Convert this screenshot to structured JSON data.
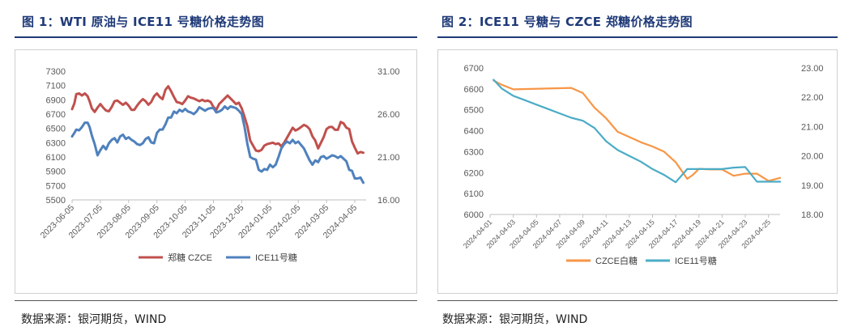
{
  "figure1": {
    "title": "图 1：WTI 原油与 ICE11 号糖价格走势图",
    "source": "数据来源：银河期货，WIND"
  },
  "figure2": {
    "title": "图 2：ICE11 号糖与 CZCE 郑糖价格走势图",
    "source": "数据来源：银河期货，WIND"
  },
  "colors": {
    "title": "#1f3a78",
    "red": "#c0504d",
    "blue": "#4f81bd",
    "orange": "#f79646",
    "cyan": "#4bacc6"
  },
  "chart_data": [
    {
      "type": "line",
      "title": "",
      "x_tick_labels": [
        "2023-06-05",
        "2023-07-05",
        "2023-08-05",
        "2023-09-05",
        "2023-10-05",
        "2023-11-05",
        "2023-12-05",
        "2024-01-05",
        "2024-02-05",
        "2024-03-05",
        "2024-04-05"
      ],
      "y_left": {
        "ticks": [
          5500,
          5700,
          5900,
          6100,
          6300,
          6500,
          6700,
          6900,
          7100,
          7300
        ],
        "tick_labels": [
          "5500",
          "5700",
          "5900",
          "6100",
          "6300",
          "6500",
          "6700",
          "6900",
          "7100",
          "7300"
        ],
        "ylim": [
          5500,
          7300
        ]
      },
      "y_right": {
        "ticks": [
          16,
          21,
          26,
          31
        ],
        "tick_labels": [
          "16.00",
          "21.00",
          "26.00",
          "31.00"
        ],
        "ylim": [
          16,
          31
        ]
      },
      "x_range": [
        0,
        10.4
      ],
      "series": [
        {
          "name": "郑糖 CZCE",
          "axis": "left",
          "color": "#c0504d",
          "x": [
            0,
            0.08,
            0.15,
            0.25,
            0.35,
            0.45,
            0.55,
            0.62,
            0.7,
            0.8,
            0.9,
            1.0,
            1.1,
            1.2,
            1.3,
            1.4,
            1.5,
            1.6,
            1.7,
            1.8,
            1.9,
            2.0,
            2.1,
            2.2,
            2.3,
            2.4,
            2.5,
            2.6,
            2.7,
            2.8,
            2.9,
            3.0,
            3.1,
            3.2,
            3.3,
            3.4,
            3.5,
            3.6,
            3.7,
            3.8,
            3.9,
            4.0,
            4.1,
            4.2,
            4.3,
            4.4,
            4.5,
            4.6,
            4.7,
            4.8,
            4.9,
            5.0,
            5.1,
            5.2,
            5.3,
            5.4,
            5.5,
            5.6,
            5.7,
            5.8,
            5.9,
            6.0,
            6.1,
            6.2,
            6.3,
            6.4,
            6.5,
            6.6,
            6.7,
            6.8,
            6.9,
            7.0,
            7.1,
            7.2,
            7.3,
            7.4,
            7.5,
            7.6,
            7.7,
            7.8,
            7.9,
            8.0,
            8.1,
            8.2,
            8.3,
            8.4,
            8.5,
            8.6,
            8.7,
            8.8,
            8.9,
            9.0,
            9.1,
            9.2,
            9.3,
            9.4,
            9.5,
            9.6,
            9.7,
            9.8,
            9.9,
            10.0,
            10.1,
            10.2,
            10.3
          ],
          "values": [
            6770,
            6850,
            6980,
            6990,
            6960,
            6990,
            6950,
            6880,
            6780,
            6730,
            6790,
            6840,
            6790,
            6750,
            6740,
            6800,
            6880,
            6890,
            6860,
            6830,
            6860,
            6820,
            6760,
            6760,
            6820,
            6870,
            6910,
            6880,
            6830,
            6870,
            6950,
            6990,
            6940,
            6910,
            7040,
            7090,
            7020,
            6940,
            6870,
            6860,
            6840,
            6890,
            6950,
            6930,
            6920,
            6900,
            6880,
            6900,
            6880,
            6890,
            6870,
            6800,
            6760,
            6840,
            6880,
            6920,
            6960,
            6920,
            6880,
            6840,
            6860,
            6780,
            6660,
            6530,
            6330,
            6260,
            6190,
            6180,
            6200,
            6260,
            6280,
            6290,
            6300,
            6280,
            6290,
            6250,
            6300,
            6370,
            6440,
            6510,
            6470,
            6490,
            6520,
            6550,
            6530,
            6490,
            6390,
            6330,
            6220,
            6300,
            6380,
            6490,
            6520,
            6520,
            6480,
            6480,
            6590,
            6570,
            6510,
            6490,
            6320,
            6230,
            6150,
            6170,
            6160
          ]
        },
        {
          "name": "ICE11号糖",
          "axis": "right",
          "color": "#4f81bd",
          "x": [
            0,
            0.08,
            0.15,
            0.25,
            0.35,
            0.45,
            0.55,
            0.62,
            0.7,
            0.8,
            0.9,
            1.0,
            1.1,
            1.2,
            1.3,
            1.4,
            1.5,
            1.6,
            1.7,
            1.8,
            1.9,
            2.0,
            2.1,
            2.2,
            2.3,
            2.4,
            2.5,
            2.6,
            2.7,
            2.8,
            2.9,
            3.0,
            3.1,
            3.2,
            3.3,
            3.4,
            3.5,
            3.6,
            3.7,
            3.8,
            3.9,
            4.0,
            4.1,
            4.2,
            4.3,
            4.4,
            4.5,
            4.6,
            4.7,
            4.8,
            4.9,
            5.0,
            5.1,
            5.2,
            5.3,
            5.4,
            5.5,
            5.6,
            5.7,
            5.8,
            5.9,
            6.0,
            6.1,
            6.2,
            6.3,
            6.4,
            6.5,
            6.6,
            6.7,
            6.8,
            6.9,
            7.0,
            7.1,
            7.2,
            7.3,
            7.4,
            7.5,
            7.6,
            7.7,
            7.8,
            7.9,
            8.0,
            8.1,
            8.2,
            8.3,
            8.4,
            8.5,
            8.6,
            8.7,
            8.8,
            8.9,
            9.0,
            9.1,
            9.2,
            9.3,
            9.4,
            9.5,
            9.6,
            9.7,
            9.8,
            9.9,
            10.0,
            10.1,
            10.2,
            10.3
          ],
          "values": [
            23.4,
            23.8,
            24.2,
            24.1,
            24.5,
            25.0,
            25.0,
            24.5,
            23.5,
            22.5,
            21.2,
            21.8,
            22.3,
            21.9,
            22.6,
            23.0,
            23.2,
            22.7,
            23.4,
            23.6,
            23.1,
            23.3,
            23.0,
            22.8,
            22.5,
            22.4,
            22.6,
            23.1,
            23.3,
            22.7,
            22.6,
            23.8,
            24.2,
            24.2,
            24.8,
            25.6,
            25.6,
            26.3,
            26.1,
            26.5,
            26.3,
            26.6,
            26.3,
            26.2,
            26.0,
            26.3,
            26.8,
            26.6,
            26.4,
            26.6,
            26.7,
            26.7,
            26.2,
            26.3,
            26.5,
            26.9,
            26.6,
            26.9,
            26.8,
            26.7,
            26.4,
            26.0,
            24.5,
            22.5,
            21.0,
            20.8,
            20.7,
            19.5,
            19.3,
            19.6,
            19.5,
            20.1,
            19.8,
            20.1,
            21.0,
            22.0,
            22.5,
            22.8,
            22.6,
            23.0,
            22.6,
            22.8,
            22.4,
            22.0,
            21.3,
            20.6,
            20.1,
            20.6,
            20.4,
            21.0,
            21.1,
            20.8,
            21.0,
            21.2,
            21.1,
            20.9,
            21.1,
            20.8,
            20.5,
            19.5,
            19.4,
            18.5,
            18.5,
            18.6,
            18.0
          ]
        }
      ],
      "legend": [
        "郑糖 CZCE",
        "ICE11号糖"
      ],
      "legend_position": "bottom"
    },
    {
      "type": "line",
      "title": "",
      "x_tick_labels": [
        "2024-04-01",
        "2024-04-03",
        "2024-04-05",
        "2024-04-07",
        "2024-04-09",
        "2024-04-11",
        "2024-04-13",
        "2024-04-15",
        "2024-04-17",
        "2024-04-19",
        "2024-04-21",
        "2024-04-23",
        "2024-04-25"
      ],
      "y_left": {
        "ticks": [
          6000,
          6100,
          6200,
          6300,
          6400,
          6500,
          6600,
          6700
        ],
        "tick_labels": [
          "6000",
          "6100",
          "6200",
          "6300",
          "6400",
          "6500",
          "6600",
          "6700"
        ],
        "ylim": [
          6000,
          6700
        ]
      },
      "y_right": {
        "ticks": [
          18,
          19,
          20,
          21,
          22,
          23
        ],
        "tick_labels": [
          "18.00",
          "19.00",
          "20.00",
          "21.00",
          "22.00",
          "23.00"
        ],
        "ylim": [
          18,
          23
        ]
      },
      "x_range": [
        1,
        26
      ],
      "series": [
        {
          "name": "CZCE白糖",
          "axis": "left",
          "color": "#f79646",
          "x": [
            1.3,
            2,
            3,
            8,
            9,
            10,
            11,
            12,
            13,
            14,
            15,
            16,
            17,
            17.5,
            18,
            18.5,
            19,
            20,
            21,
            22,
            23,
            24,
            25,
            26
          ],
          "values": [
            6640,
            6620,
            6598,
            6605,
            6580,
            6510,
            6460,
            6395,
            6370,
            6345,
            6325,
            6300,
            6250,
            6210,
            6170,
            6190,
            6218,
            6215,
            6215,
            6185,
            6195,
            6195,
            6160,
            6175
          ]
        },
        {
          "name": "ICE11号糖",
          "axis": "right",
          "color": "#4bacc6",
          "x": [
            1.3,
            2,
            3,
            4,
            5,
            6,
            7,
            8,
            9,
            10,
            11,
            12,
            13,
            14,
            15,
            16,
            17,
            18,
            19,
            20,
            21,
            22,
            23,
            24,
            25,
            26
          ],
          "values": [
            22.6,
            22.3,
            22.05,
            21.9,
            21.75,
            21.6,
            21.45,
            21.3,
            21.2,
            20.95,
            20.5,
            20.2,
            20.0,
            19.8,
            19.55,
            19.35,
            19.1,
            19.55,
            19.55,
            19.55,
            19.55,
            19.6,
            19.62,
            19.12,
            19.12,
            19.12
          ]
        }
      ],
      "legend": [
        "CZCE白糖",
        "ICE11号糖"
      ],
      "legend_position": "bottom"
    }
  ]
}
